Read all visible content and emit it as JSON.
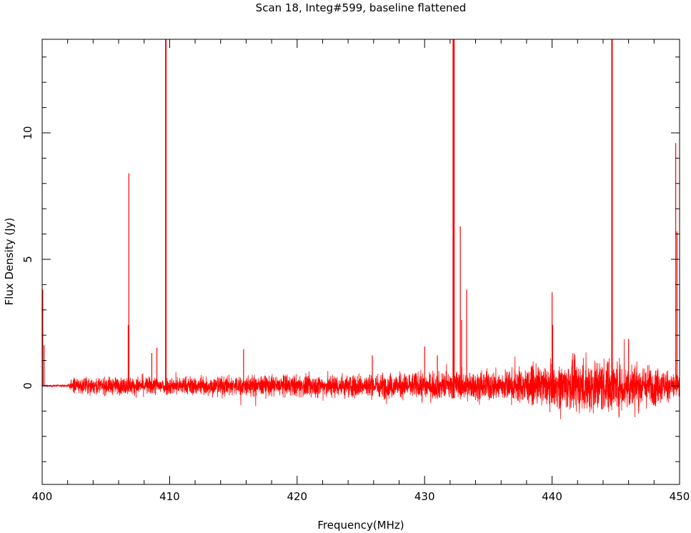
{
  "chart_data": {
    "type": "line",
    "title": "Scan 18, Integ#599, baseline flattened",
    "xlabel": "Frequency(MHz)",
    "ylabel": "Flux Density (Jy)",
    "xlim": [
      400,
      450
    ],
    "ylim": [
      -3.9,
      13.7
    ],
    "x_ticks": [
      "400",
      "410",
      "420",
      "430",
      "440",
      "450"
    ],
    "y_ticks": [
      "0",
      "5",
      "10"
    ],
    "grid": false,
    "line_color": "#ff0000",
    "noise_envelope": [
      {
        "x": 400.0,
        "amp": 0.02
      },
      {
        "x": 402.0,
        "amp": 0.03
      },
      {
        "x": 402.5,
        "amp": 0.22
      },
      {
        "x": 410.0,
        "amp": 0.25
      },
      {
        "x": 420.0,
        "amp": 0.3
      },
      {
        "x": 430.0,
        "amp": 0.36
      },
      {
        "x": 436.0,
        "amp": 0.42
      },
      {
        "x": 440.0,
        "amp": 0.55
      },
      {
        "x": 443.0,
        "amp": 0.78
      },
      {
        "x": 446.0,
        "amp": 0.68
      },
      {
        "x": 449.0,
        "amp": 0.45
      },
      {
        "x": 450.0,
        "amp": 0.35
      }
    ],
    "spikes": [
      {
        "x": 400.05,
        "y": 3.8
      },
      {
        "x": 400.15,
        "y": 1.6
      },
      {
        "x": 406.8,
        "y": 8.4
      },
      {
        "x": 406.75,
        "y": 2.4
      },
      {
        "x": 408.6,
        "y": 1.3
      },
      {
        "x": 409.0,
        "y": 1.5
      },
      {
        "x": 409.7,
        "y": 13.7
      },
      {
        "x": 415.8,
        "y": 1.45
      },
      {
        "x": 425.9,
        "y": 1.2
      },
      {
        "x": 430.0,
        "y": 1.55
      },
      {
        "x": 431.0,
        "y": 1.2
      },
      {
        "x": 432.25,
        "y": 13.7
      },
      {
        "x": 432.3,
        "y": 13.7
      },
      {
        "x": 432.8,
        "y": 6.3
      },
      {
        "x": 432.9,
        "y": 2.6
      },
      {
        "x": 433.3,
        "y": 3.8
      },
      {
        "x": 440.0,
        "y": 3.7
      },
      {
        "x": 440.05,
        "y": 2.4
      },
      {
        "x": 444.7,
        "y": 13.7
      },
      {
        "x": 446.0,
        "y": 1.85
      },
      {
        "x": 449.7,
        "y": 9.6
      },
      {
        "x": 449.8,
        "y": 6.1
      }
    ]
  }
}
